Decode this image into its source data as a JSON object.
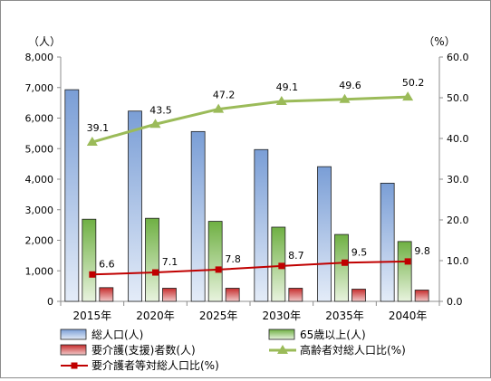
{
  "chart_data": {
    "type": "bar",
    "categories": [
      "2015年",
      "2020年",
      "2025年",
      "2030年",
      "2035年",
      "2040年"
    ],
    "y_left": {
      "unit_label": "（人）",
      "min": 0,
      "max": 8000,
      "step": 1000,
      "tick_labels": [
        "0",
        "1,000",
        "2,000",
        "3,000",
        "4,000",
        "5,000",
        "6,000",
        "7,000",
        "8,000"
      ]
    },
    "y_right": {
      "unit_label": "（%）",
      "min": 0,
      "max": 60,
      "step": 10,
      "tick_labels": [
        "0.0",
        "10.0",
        "20.0",
        "30.0",
        "40.0",
        "50.0",
        "60.0"
      ]
    },
    "grid": false,
    "legend_position": "bottom",
    "series": [
      {
        "name": "総人口(人)",
        "kind": "bar",
        "axis": "left",
        "color_top": "#7a9ed6",
        "color_bottom": "#e4ecf8",
        "values": [
          6930,
          6230,
          5560,
          4970,
          4410,
          3870
        ]
      },
      {
        "name": "65歳以上(人)",
        "kind": "bar",
        "axis": "left",
        "color_top": "#6fb043",
        "color_bottom": "#e8f3de",
        "values": [
          2690,
          2720,
          2620,
          2430,
          2190,
          1960
        ]
      },
      {
        "name": "要介護(支援)者数(人)",
        "kind": "bar",
        "axis": "left",
        "color_top": "#c62d2d",
        "color_bottom": "#f2c9c9",
        "values": [
          450,
          430,
          430,
          430,
          400,
          370
        ]
      },
      {
        "name": "高齢者対総人口比(%)",
        "kind": "line",
        "axis": "right",
        "color": "#9bbb59",
        "marker": "triangle",
        "values": [
          39.1,
          43.5,
          47.2,
          49.1,
          49.6,
          50.2
        ],
        "labels": [
          "39.1",
          "43.5",
          "47.2",
          "49.1",
          "49.6",
          "50.2"
        ]
      },
      {
        "name": "要介護者等対総人口比(%)",
        "kind": "line",
        "axis": "right",
        "color": "#c00000",
        "marker": "square",
        "values": [
          6.6,
          7.1,
          7.8,
          8.7,
          9.5,
          9.8
        ],
        "labels": [
          "6.6",
          "7.1",
          "7.8",
          "8.7",
          "9.5",
          "9.8"
        ]
      }
    ]
  }
}
